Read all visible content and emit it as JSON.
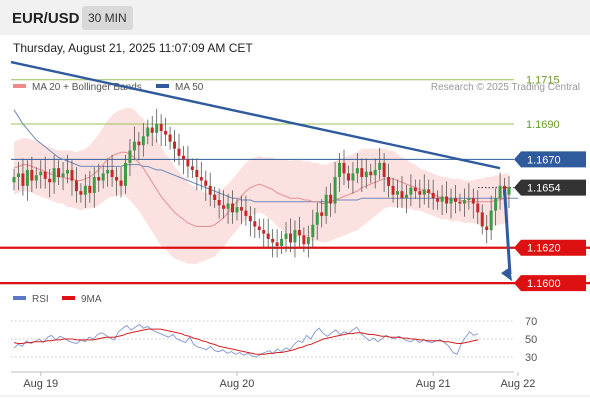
{
  "header": {
    "symbol": "EUR/USD",
    "timeframe": "30 MIN",
    "datetime": "Thursday, August 21, 2025 11:07:09 AM CET",
    "background": "#f1f1f1"
  },
  "chart_data": [
    {
      "type": "candlestick",
      "legend": [
        {
          "label": "MA 20 + Bollinger Bands",
          "color": "#f08a8a"
        },
        {
          "label": "MA 50",
          "color": "#2f5b9c"
        }
      ],
      "legend_placement": "top-left",
      "credit": "Research © 2025 Trading Central",
      "ylim": [
        1.15995,
        1.17205
      ],
      "levels": [
        {
          "value": 1.1715,
          "label": "1.1715",
          "color": "#9cc25b",
          "style": "line",
          "tag": false
        },
        {
          "value": 1.169,
          "label": "1.1690",
          "color": "#9cc25b",
          "style": "line",
          "tag": false
        },
        {
          "value": 1.167,
          "label": "1.1670",
          "color": "#2f5b9c",
          "style": "line",
          "tag": true
        },
        {
          "value": 1.1654,
          "label": "1.1654",
          "color": "#333333",
          "style": "dotted",
          "tag": true
        },
        {
          "value": 1.162,
          "label": "1.1620",
          "color": "#dd1111",
          "style": "thick",
          "tag": true
        },
        {
          "value": 1.16,
          "label": "1.1600",
          "color": "#dd1111",
          "style": "thick",
          "tag": true
        }
      ],
      "trendline": {
        "from": [
          0,
          1.1725
        ],
        "to": [
          109,
          1.1665
        ],
        "color": "#2f5b9c"
      },
      "forecast_arrow": {
        "from": [
          110,
          1.1653
        ],
        "to": [
          118,
          1.16
        ],
        "color": "#2f5b9c"
      },
      "x_labels": [
        {
          "label": "Aug 19",
          "index": 6
        },
        {
          "label": "Aug 20",
          "index": 50
        },
        {
          "label": "Aug 21",
          "index": 94
        },
        {
          "label": "Aug 22",
          "index": 113
        }
      ],
      "closes": [
        1.166,
        1.1662,
        1.1655,
        1.1664,
        1.1658,
        1.1661,
        1.1663,
        1.1659,
        1.1657,
        1.1665,
        1.166,
        1.1662,
        1.1664,
        1.1658,
        1.1652,
        1.165,
        1.1655,
        1.1651,
        1.166,
        1.1658,
        1.1662,
        1.1664,
        1.166,
        1.1658,
        1.1655,
        1.1668,
        1.1675,
        1.168,
        1.1678,
        1.1683,
        1.1688,
        1.1685,
        1.169,
        1.1686,
        1.1684,
        1.168,
        1.1676,
        1.1672,
        1.167,
        1.1666,
        1.1664,
        1.166,
        1.1658,
        1.1655,
        1.165,
        1.1647,
        1.1644,
        1.1642,
        1.1645,
        1.164,
        1.1643,
        1.1641,
        1.1638,
        1.1635,
        1.1632,
        1.163,
        1.1628,
        1.1625,
        1.1623,
        1.1621,
        1.1625,
        1.1628,
        1.1623,
        1.163,
        1.1627,
        1.1622,
        1.1626,
        1.1633,
        1.164,
        1.1638,
        1.165,
        1.1645,
        1.166,
        1.1668,
        1.1662,
        1.1658,
        1.1662,
        1.1665,
        1.166,
        1.1663,
        1.1661,
        1.1664,
        1.1668,
        1.166,
        1.1655,
        1.165,
        1.1652,
        1.1648,
        1.165,
        1.1654,
        1.1652,
        1.165,
        1.1653,
        1.1651,
        1.1648,
        1.1646,
        1.1649,
        1.1645,
        1.1648,
        1.1646,
        1.1645,
        1.1647,
        1.1648,
        1.1645,
        1.164,
        1.1632,
        1.163,
        1.1641,
        1.1648,
        1.1655,
        1.165,
        1.1654
      ],
      "ma20": [
        1.1665,
        1.1666,
        1.1667,
        1.1667,
        1.1666,
        1.1665,
        1.1664,
        1.1663,
        1.1662,
        1.1661,
        1.166,
        1.166,
        1.1659,
        1.1659,
        1.1658,
        1.1658,
        1.1659,
        1.166,
        1.1662,
        1.1664,
        1.1667,
        1.167,
        1.1672,
        1.1673,
        1.1674,
        1.1674,
        1.1673,
        1.1671,
        1.1668,
        1.1665,
        1.1661,
        1.1657,
        1.1653,
        1.1649,
        1.1646,
        1.1643,
        1.164,
        1.1638,
        1.1636,
        1.1634,
        1.1633,
        1.1632,
        1.1632,
        1.1632,
        1.1632,
        1.1633,
        1.1635,
        1.1637,
        1.164,
        1.1643,
        1.1646,
        1.1649,
        1.1652,
        1.1654,
        1.1655,
        1.1656,
        1.1655,
        1.1654,
        1.1653,
        1.1651,
        1.165,
        1.1649,
        1.1648,
        1.1648,
        1.1648,
        1.1647,
        1.1647,
        1.1646,
        1.1646,
        1.1645,
        1.1645,
        1.1646,
        1.1647,
        1.1648,
        1.1649,
        1.165,
        1.1651,
        1.1652,
        1.1654,
        1.1655,
        1.1656,
        1.1657,
        1.1658,
        1.1659,
        1.1659,
        1.1659,
        1.1658,
        1.1657,
        1.1656,
        1.1655,
        1.1654,
        1.1653,
        1.1652,
        1.1651,
        1.165,
        1.1649,
        1.1648,
        1.1648,
        1.1647,
        1.1647,
        1.1647,
        1.1646,
        1.1646,
        1.1646,
        1.1646,
        1.1646,
        1.1646,
        1.1646,
        1.1647,
        1.1647,
        1.1648,
        1.1648
      ],
      "ma50": [
        1.1698,
        1.1694,
        1.169,
        1.1687,
        1.1684,
        1.1681,
        1.1679,
        1.1677,
        1.1675,
        1.1673,
        1.1671,
        1.167,
        1.1669,
        1.1668,
        1.1667,
        1.1666,
        1.1666,
        1.1666,
        1.1666,
        1.1666,
        1.1666,
        1.1666,
        1.1666,
        1.1666,
        1.1666,
        1.1667,
        1.1667,
        1.1667,
        1.1667,
        1.1666,
        1.1666,
        1.1665,
        1.1664,
        1.1664,
        1.1663,
        1.1662,
        1.1661,
        1.166,
        1.1659,
        1.1658,
        1.1657,
        1.1656,
        1.1655,
        1.1654,
        1.1653,
        1.1652,
        1.1651,
        1.165,
        1.1649,
        1.1648,
        1.1648,
        1.1647,
        1.1647,
        1.1647,
        1.1646,
        1.1646,
        1.1646,
        1.1646,
        1.1646,
        1.1646,
        1.1646,
        1.1646,
        1.1646,
        1.1646,
        1.1646,
        1.1646,
        1.1646,
        1.1646,
        1.1646,
        1.1646,
        1.1646,
        1.1646,
        1.1647,
        1.1647,
        1.1647,
        1.1647,
        1.1647,
        1.1647,
        1.1648,
        1.1648,
        1.1648,
        1.1648,
        1.1648,
        1.1648,
        1.1648,
        1.1648,
        1.1648,
        1.1648,
        1.1648,
        1.1648,
        1.1648,
        1.1648,
        1.1648,
        1.1648,
        1.1648,
        1.1648,
        1.1648,
        1.1648,
        1.1648,
        1.1648,
        1.1648,
        1.1648,
        1.1648,
        1.1648,
        1.1648,
        1.1648,
        1.1648,
        1.1648,
        1.1648,
        1.1648,
        1.1648,
        1.1648,
        1.1648,
        1.1648
      ],
      "band_width": [
        0.0015,
        0.0015,
        0.0015,
        0.0015,
        0.0015,
        0.0015,
        0.0015,
        0.0015,
        0.0015,
        0.0015,
        0.0015,
        0.0015,
        0.0016,
        0.0016,
        0.0016,
        0.0017,
        0.0017,
        0.0018,
        0.0019,
        0.002,
        0.0021,
        0.0022,
        0.0023,
        0.0024,
        0.0024,
        0.0025,
        0.0026,
        0.0027,
        0.0027,
        0.0028,
        0.0028,
        0.0028,
        0.0028,
        0.0028,
        0.0027,
        0.0027,
        0.0026,
        0.0025,
        0.0024,
        0.0023,
        0.0022,
        0.0021,
        0.002,
        0.0019,
        0.0018,
        0.0018,
        0.0017,
        0.0017,
        0.0016,
        0.0016,
        0.0016,
        0.0016,
        0.0016,
        0.0016,
        0.0016,
        0.0016,
        0.0016,
        0.0017,
        0.0018,
        0.0019,
        0.002,
        0.0021,
        0.0021,
        0.0022,
        0.0022,
        0.0022,
        0.0022,
        0.0022,
        0.0022,
        0.0022,
        0.0022,
        0.0022,
        0.0022,
        0.0022,
        0.0022,
        0.0022,
        0.0022,
        0.0022,
        0.0022,
        0.0021,
        0.002,
        0.0019,
        0.0018,
        0.0017,
        0.0016,
        0.0016,
        0.0015,
        0.0014,
        0.0014,
        0.0013,
        0.0013,
        0.0012,
        0.0012,
        0.0012,
        0.0012,
        0.0012,
        0.0012,
        0.0012,
        0.0012,
        0.0012,
        0.0012,
        0.0012,
        0.0012,
        0.0012,
        0.0013,
        0.0013,
        0.0014,
        0.0014,
        0.0014,
        0.0014,
        0.0014,
        0.0014,
        0.0013,
        0.0013
      ]
    },
    {
      "type": "line",
      "legend": [
        {
          "label": "RSI",
          "color": "#5a78c8"
        },
        {
          "label": "9MA",
          "color": "#dd1111"
        }
      ],
      "legend_placement": "top-left",
      "ylim": [
        20,
        80
      ],
      "ticks": [
        70,
        50,
        30
      ],
      "rsi": [
        40,
        44,
        42,
        48,
        45,
        47,
        50,
        46,
        52,
        54,
        49,
        53,
        51,
        48,
        46,
        45,
        49,
        47,
        52,
        50,
        55,
        57,
        54,
        51,
        49,
        58,
        62,
        65,
        60,
        63,
        66,
        62,
        64,
        60,
        58,
        56,
        54,
        52,
        55,
        50,
        48,
        46,
        52,
        44,
        41,
        40,
        38,
        42,
        37,
        36,
        38,
        34,
        36,
        33,
        35,
        32,
        34,
        31,
        30,
        33,
        35,
        37,
        34,
        39,
        36,
        40,
        38,
        44,
        48,
        46,
        54,
        50,
        58,
        62,
        56,
        53,
        57,
        60,
        55,
        58,
        56,
        60,
        63,
        56,
        52,
        48,
        51,
        47,
        50,
        54,
        52,
        50,
        53,
        51,
        48,
        47,
        50,
        46,
        49,
        47,
        46,
        48,
        49,
        46,
        42,
        35,
        33,
        45,
        52,
        58,
        54,
        56
      ],
      "ma9": [
        46,
        45,
        45,
        46,
        46,
        47,
        47,
        47,
        48,
        48,
        49,
        49,
        50,
        50,
        50,
        49,
        49,
        49,
        49,
        49,
        50,
        51,
        52,
        52,
        52,
        53,
        54,
        56,
        57,
        58,
        59,
        60,
        61,
        61,
        61,
        61,
        60,
        59,
        58,
        57,
        56,
        54,
        53,
        51,
        50,
        48,
        47,
        45,
        44,
        42,
        41,
        40,
        39,
        38,
        37,
        36,
        35,
        34,
        33,
        33,
        33,
        34,
        34,
        35,
        35,
        36,
        37,
        38,
        40,
        41,
        43,
        44,
        46,
        48,
        50,
        51,
        52,
        53,
        54,
        55,
        56,
        56,
        57,
        57,
        56,
        55,
        55,
        54,
        53,
        53,
        52,
        52,
        52,
        51,
        51,
        50,
        50,
        49,
        49,
        48,
        48,
        48,
        48,
        47,
        47,
        46,
        45,
        45,
        46,
        47,
        48,
        49
      ]
    }
  ]
}
